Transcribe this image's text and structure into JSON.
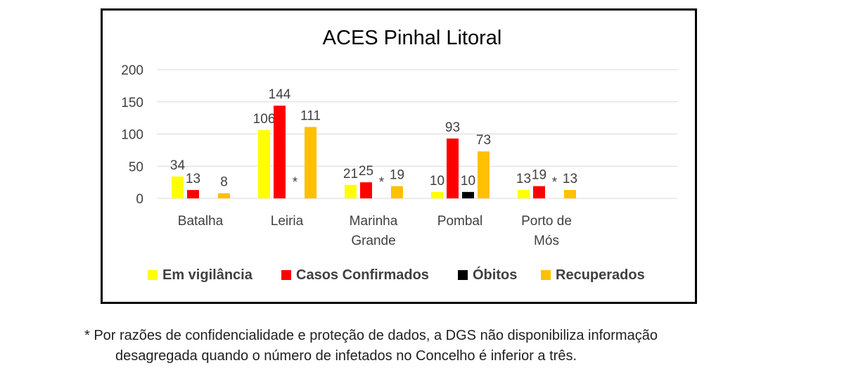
{
  "chart_data": {
    "type": "bar",
    "title": "ACES Pinhal Litoral",
    "categories": [
      [
        "Batalha"
      ],
      [
        "Leiria"
      ],
      [
        "Marinha",
        "Grande"
      ],
      [
        "Pombal"
      ],
      [
        "Porto de",
        "Mós"
      ]
    ],
    "ylim": [
      0,
      200
    ],
    "yticks": [
      "0",
      "50",
      "100",
      "150",
      "200"
    ],
    "grid": true,
    "legend_position": "bottom",
    "series": [
      {
        "name": "Em vigilância",
        "color": "#FFFF00",
        "values": [
          34,
          106,
          21,
          10,
          13
        ],
        "labels": [
          "34",
          "106",
          "21",
          "10",
          "13"
        ]
      },
      {
        "name": "Casos Confirmados",
        "color": "#FF0000",
        "values": [
          13,
          144,
          25,
          93,
          19
        ],
        "labels": [
          "13",
          "144",
          "25",
          "93",
          "19"
        ]
      },
      {
        "name": "Óbitos",
        "color": "#000000",
        "values": [
          null,
          null,
          null,
          10,
          null
        ],
        "labels": [
          "",
          "*",
          "*",
          "10",
          "*"
        ]
      },
      {
        "name": "Recuperados",
        "color": "#FFC000",
        "values": [
          8,
          111,
          19,
          73,
          13
        ],
        "labels": [
          "8",
          "111",
          "19",
          "73",
          "13"
        ]
      }
    ]
  },
  "footnote": {
    "line1": "* Por razões de confidencialidade e proteção de dados, a DGS não disponibiliza informação",
    "line2": "desagregada quando o número de infetados no Concelho é inferior a três."
  }
}
